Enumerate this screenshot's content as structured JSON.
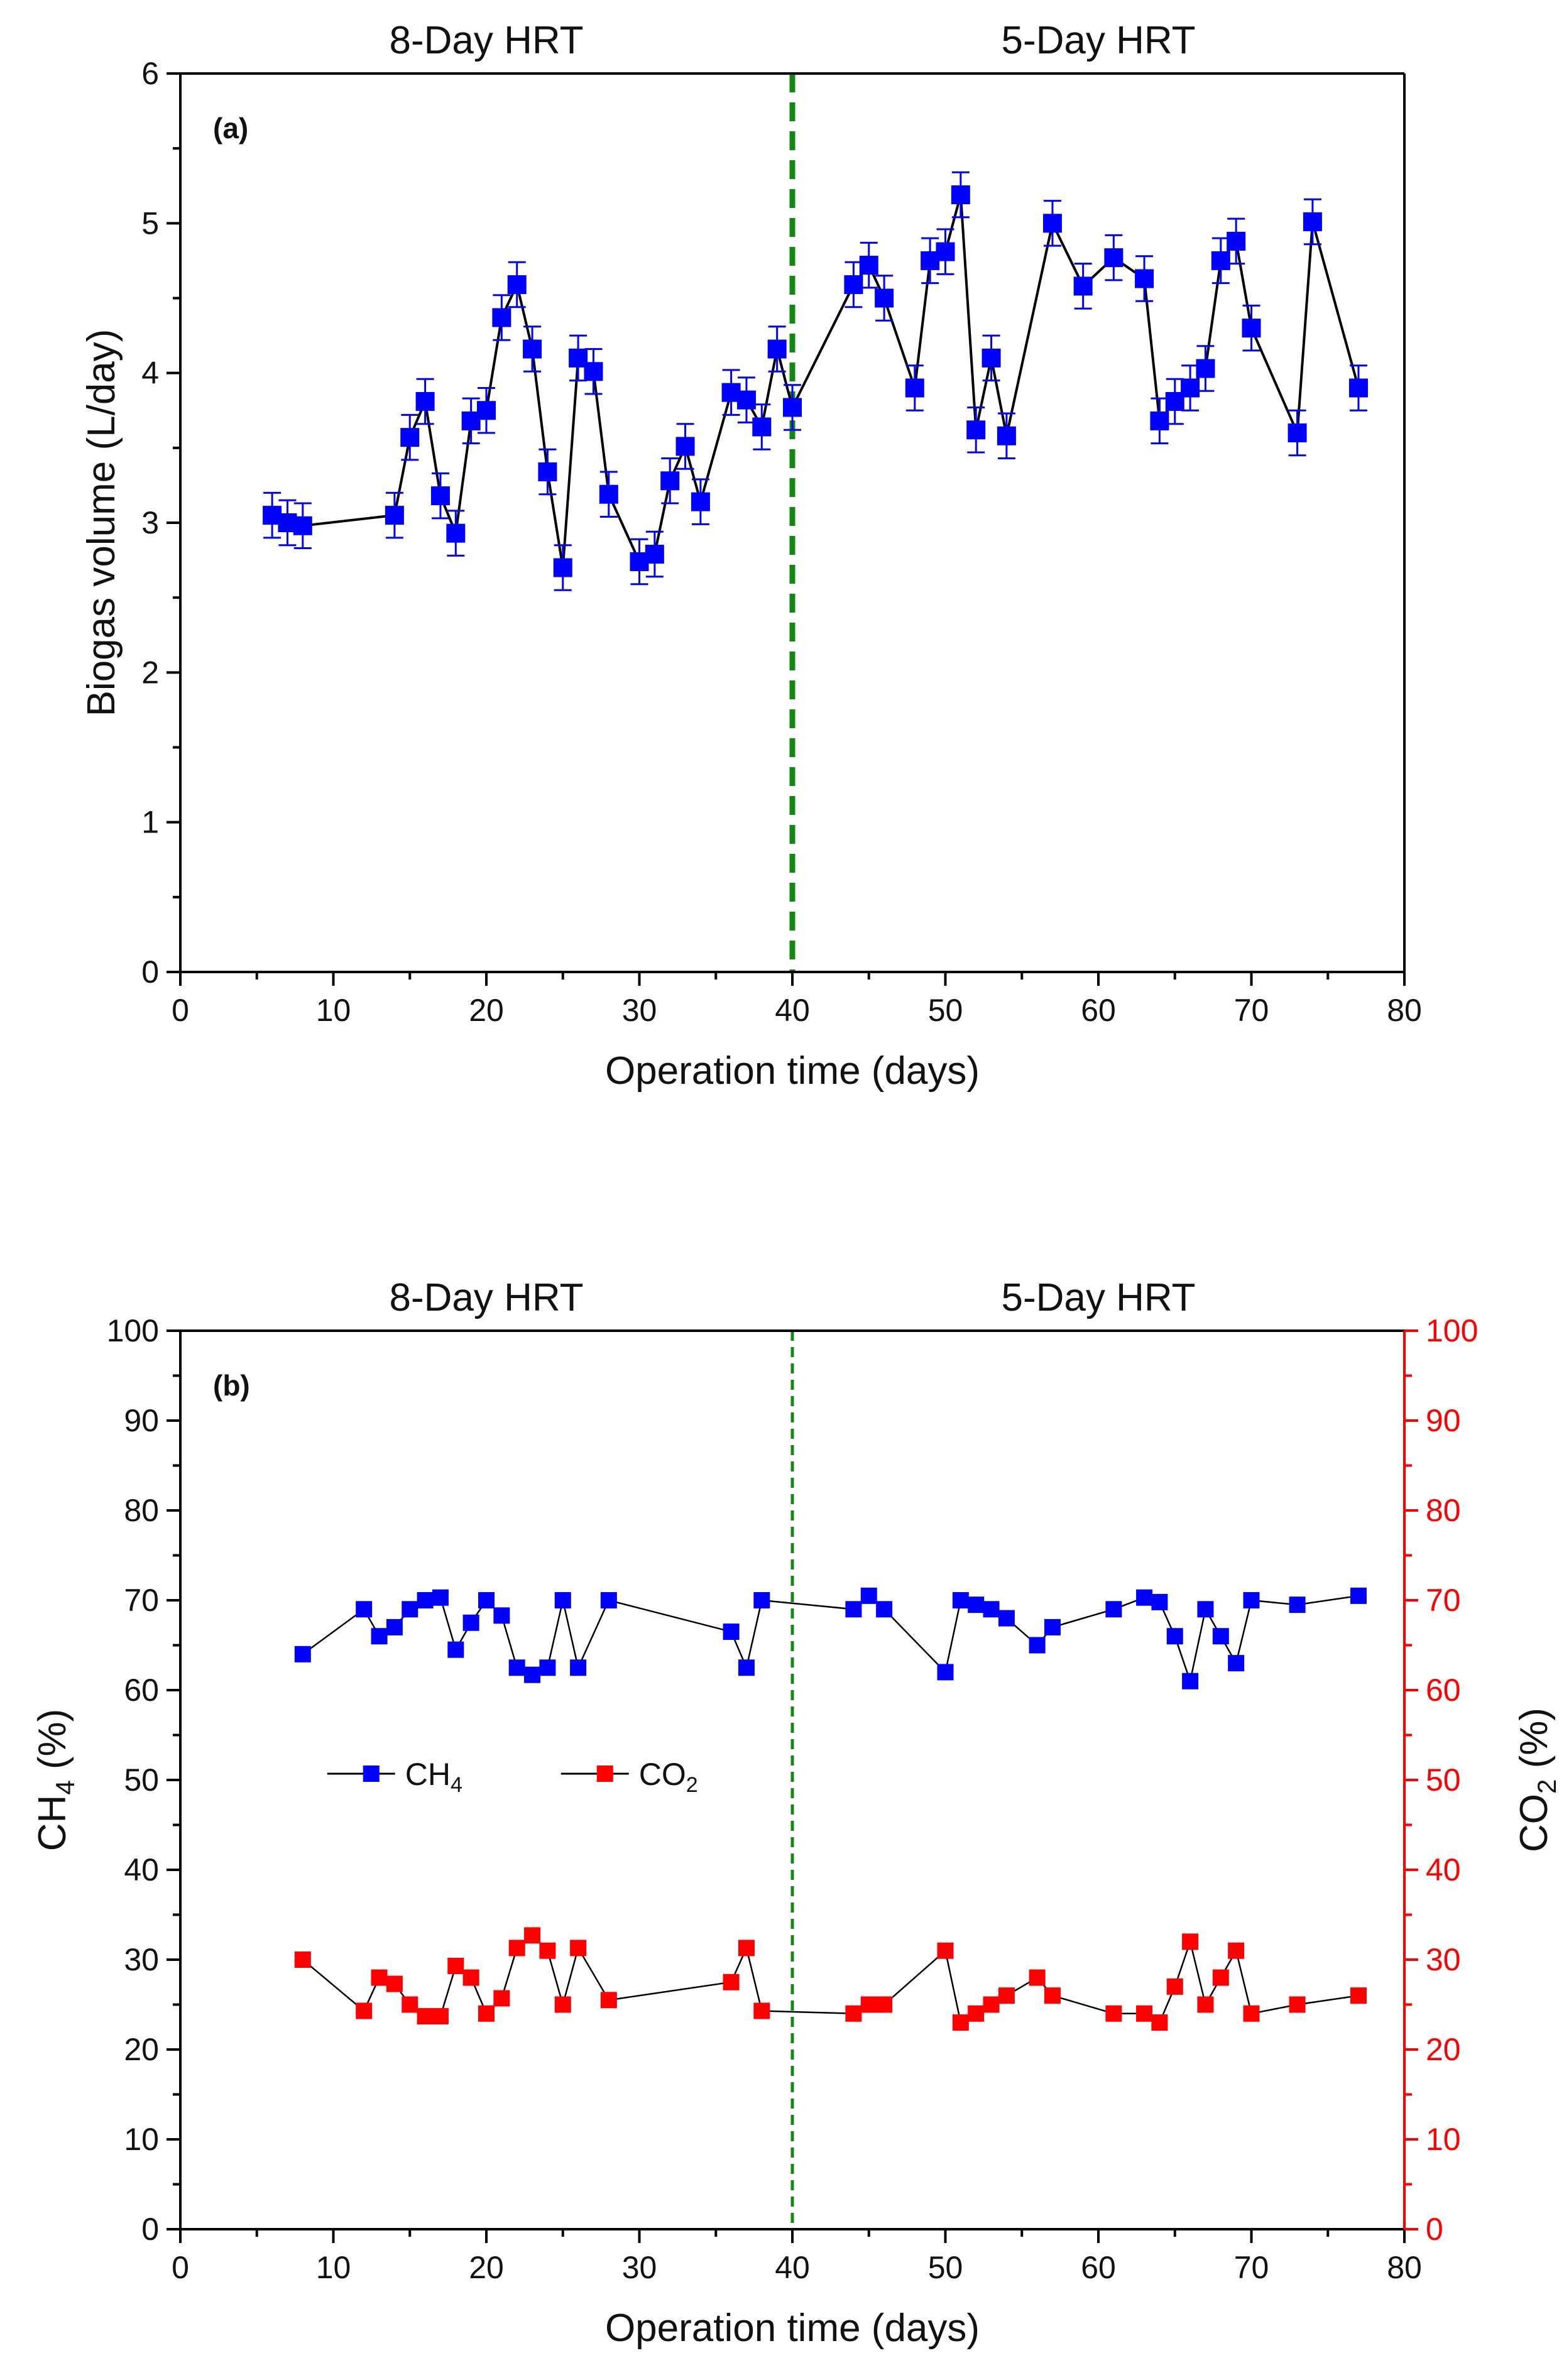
{
  "chart_data": [
    {
      "type": "line",
      "panel_label": "(a)",
      "period_labels": [
        "8-Day HRT",
        "5-Day HRT"
      ],
      "divider_x": 40,
      "xlabel": "Operation time (days)",
      "ylabel": "Biogas volume (L/day)",
      "xlim": [
        0,
        80
      ],
      "ylim": [
        0,
        6
      ],
      "xticks": [
        0,
        10,
        20,
        30,
        40,
        50,
        60,
        70,
        80
      ],
      "yticks": [
        0,
        1,
        2,
        3,
        4,
        5,
        6
      ],
      "series": [
        {
          "name": "Biogas volume",
          "color": "#0000ff",
          "x": [
            6,
            7,
            8,
            14,
            15,
            16,
            17,
            18,
            19,
            20,
            21,
            22,
            23,
            24,
            25,
            26,
            27,
            28,
            30,
            31,
            32,
            33,
            34,
            36,
            37,
            38,
            39,
            40,
            44,
            45,
            46,
            48,
            49,
            50,
            51,
            52,
            53,
            54,
            57,
            59,
            61,
            63,
            64,
            65,
            66,
            67,
            68,
            69,
            70,
            73,
            74,
            77
          ],
          "y": [
            3.05,
            3.0,
            2.98,
            3.05,
            3.57,
            3.81,
            3.18,
            2.93,
            3.68,
            3.75,
            4.37,
            4.59,
            4.16,
            3.34,
            2.7,
            4.1,
            4.01,
            3.19,
            2.74,
            2.79,
            3.28,
            3.51,
            3.14,
            3.87,
            3.82,
            3.64,
            4.16,
            3.77,
            4.59,
            4.72,
            4.5,
            3.9,
            4.75,
            4.81,
            5.19,
            3.62,
            4.1,
            3.58,
            5.0,
            4.58,
            4.77,
            4.63,
            3.68,
            3.81,
            3.9,
            4.03,
            4.75,
            4.88,
            4.3,
            3.6,
            5.01,
            3.9
          ],
          "error": 0.15
        }
      ]
    },
    {
      "type": "line",
      "panel_label": "(b)",
      "period_labels": [
        "8-Day HRT",
        "5-Day HRT"
      ],
      "divider_x": 40,
      "xlabel": "Operation time (days)",
      "ylabel_left": "CH4 (%)",
      "ylabel_right": "CO2 (%)",
      "xlim": [
        0,
        80
      ],
      "ylim": [
        0,
        100
      ],
      "xticks": [
        0,
        10,
        20,
        30,
        40,
        50,
        60,
        70,
        80
      ],
      "yticks": [
        0,
        10,
        20,
        30,
        40,
        50,
        60,
        70,
        80,
        90,
        100
      ],
      "legend": [
        {
          "name": "CH4",
          "color": "#0000ff"
        },
        {
          "name": "CO2",
          "color": "#ff0000"
        }
      ],
      "series": [
        {
          "name": "CH4",
          "color": "#0000ff",
          "x": [
            8,
            12,
            13,
            14,
            15,
            16,
            17,
            18,
            19,
            20,
            21,
            22,
            23,
            24,
            25,
            26,
            28,
            36,
            37,
            38,
            44,
            45,
            46,
            50,
            51,
            52,
            53,
            54,
            56,
            57,
            61,
            63,
            64,
            65,
            66,
            67,
            68,
            69,
            70,
            73,
            77
          ],
          "y": [
            64,
            69,
            66,
            67,
            69,
            70,
            70.3,
            64.5,
            67.5,
            70,
            68.3,
            62.5,
            61.7,
            62.5,
            70,
            62.5,
            70,
            66.5,
            62.5,
            70,
            69,
            70.5,
            69,
            62,
            70,
            69.5,
            69,
            68,
            65,
            67,
            69,
            70.3,
            69.8,
            66,
            61,
            69,
            66,
            63,
            70,
            69.5,
            70.5
          ]
        },
        {
          "name": "CO2",
          "color": "#ff0000",
          "x": [
            8,
            12,
            13,
            14,
            15,
            16,
            17,
            18,
            19,
            20,
            21,
            22,
            23,
            24,
            25,
            26,
            28,
            36,
            37,
            38,
            44,
            45,
            46,
            50,
            51,
            52,
            53,
            54,
            56,
            57,
            61,
            63,
            64,
            65,
            66,
            67,
            68,
            69,
            70,
            73,
            77
          ],
          "y": [
            30,
            24.3,
            28,
            27.3,
            25,
            23.7,
            23.7,
            29.3,
            28,
            24,
            25.7,
            31.3,
            32.7,
            31,
            25,
            31.3,
            25.5,
            27.5,
            31.3,
            24.3,
            24,
            25,
            25,
            31,
            23,
            24,
            25,
            26,
            28,
            26,
            24,
            24,
            23,
            27,
            32,
            25,
            28,
            31,
            24,
            25,
            26
          ]
        }
      ]
    }
  ]
}
